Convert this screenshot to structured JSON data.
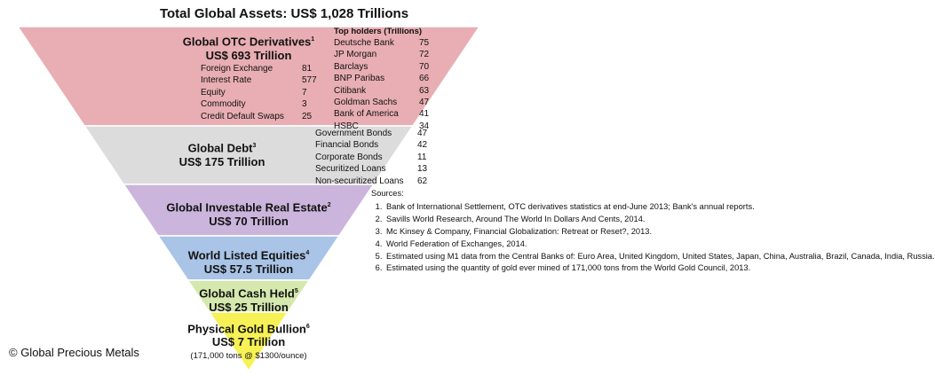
{
  "title": "Total Global Assets: US$ 1,028 Trillions",
  "levels": [
    {
      "name": "Global OTC Derivatives",
      "note_ref": "1",
      "value": "US$ 693 Trillion",
      "color": "#e8aeb3"
    },
    {
      "name": "Global Debt",
      "note_ref": "3",
      "value": "US$ 175 Trillion",
      "color": "#dcdcdc"
    },
    {
      "name": "Global Investable Real Estate",
      "note_ref": "2",
      "value": "US$ 70 Trillion",
      "color": "#cbb5dc"
    },
    {
      "name": "World Listed Equities",
      "note_ref": "4",
      "value": "US$ 57.5 Trillion",
      "color": "#a9c4e6"
    },
    {
      "name": "Global Cash Held",
      "note_ref": "5",
      "value": "US$ 25 Trillion",
      "color": "#d5e8ad"
    },
    {
      "name": "Physical Gold Bullion",
      "note_ref": "6",
      "value": "US$ 7 Trillion",
      "color": "#f6f155"
    }
  ],
  "gold_note": "(171,000 tons @ $1300/ounce)",
  "derivatives_breakdown": [
    {
      "label": "Foreign Exchange",
      "value": "81"
    },
    {
      "label": "Interest Rate",
      "value": "577"
    },
    {
      "label": "Equity",
      "value": "7"
    },
    {
      "label": "Commodity",
      "value": "3"
    },
    {
      "label": "Credit Default Swaps",
      "value": "25"
    }
  ],
  "holders_title": "Top holders (Trillions)",
  "holders": [
    {
      "label": "Deutsche Bank",
      "value": "75"
    },
    {
      "label": "JP Morgan",
      "value": "72"
    },
    {
      "label": "Barclays",
      "value": "70"
    },
    {
      "label": "BNP Paribas",
      "value": "66"
    },
    {
      "label": "Citibank",
      "value": "63"
    },
    {
      "label": "Goldman Sachs",
      "value": "47"
    },
    {
      "label": "Bank of America",
      "value": "41"
    },
    {
      "label": "HSBC",
      "value": "34"
    }
  ],
  "debt_breakdown": [
    {
      "label": "Government Bonds",
      "value": "47"
    },
    {
      "label": "Financial Bonds",
      "value": "42"
    },
    {
      "label": "Corporate Bonds",
      "value": "11"
    },
    {
      "label": "Securitized Loans",
      "value": "13"
    },
    {
      "label": "Non-securitized Loans",
      "value": "62"
    }
  ],
  "sources_title": "Sources:",
  "sources": [
    "Bank of International Settlement, OTC derivatives statistics at end-June 2013; Bank's annual reports.",
    "Savills World Research, Around The World In Dollars And Cents, 2014.",
    "Mc Kinsey & Company, Financial Globalization: Retreat or Reset?, 2013.",
    "World Federation of Exchanges, 2014.",
    "Estimated using M1 data from the Central Banks of: Euro Area, United Kingdom, United States, Japan, China, Australia, Brazil, Canada, India, Russia.",
    "Estimated using the quantity of gold ever mined of 171,000 tons from the World Gold Council, 2013."
  ],
  "copyright": "© Global Precious Metals"
}
